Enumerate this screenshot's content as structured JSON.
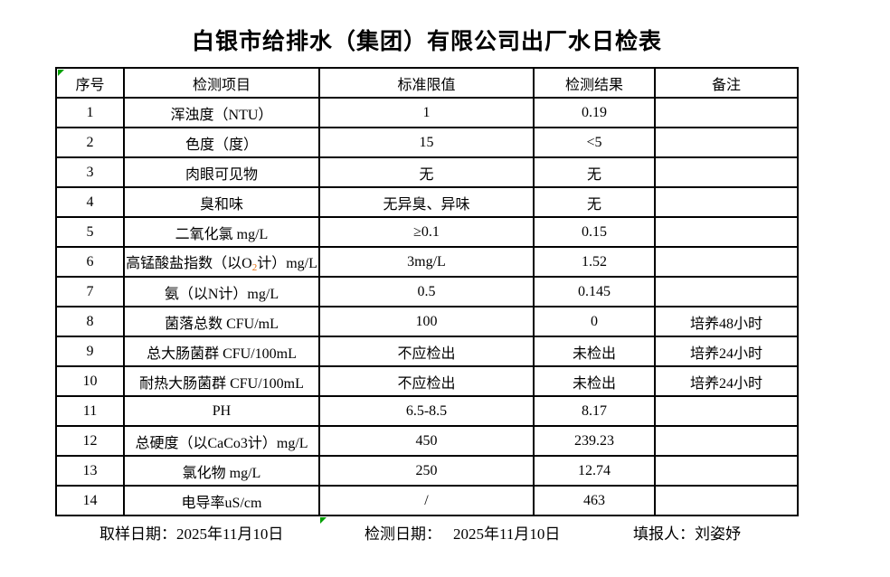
{
  "title": "白银市给排水（集团）有限公司出厂水日检表",
  "colors": {
    "error_indicator": "#00a000",
    "subscript_o2": "#e36c09"
  },
  "table": {
    "headers": {
      "no": "序号",
      "item": "检测项目",
      "standard": "标准限值",
      "result": "检测结果",
      "remark": "备注"
    },
    "rows": [
      {
        "no": "1",
        "item": "浑浊度（NTU）",
        "standard": "1",
        "result": "0.19",
        "remark": ""
      },
      {
        "no": "2",
        "item": "色度（度）",
        "standard": "15",
        "result": "<5",
        "remark": ""
      },
      {
        "no": "3",
        "item": "肉眼可见物",
        "standard": "无",
        "result": "无",
        "remark": ""
      },
      {
        "no": "4",
        "item": "臭和味",
        "standard": "无异臭、异味",
        "result": "无",
        "remark": ""
      },
      {
        "no": "5",
        "item": "二氧化氯 mg/L",
        "standard": "≥0.1",
        "result": "0.15",
        "remark": ""
      },
      {
        "no": "6",
        "item_parts": {
          "prefix": "高锰酸盐指数（以O",
          "sub": "2",
          "suffix": "计）mg/L"
        },
        "standard": "3mg/L",
        "result": "1.52",
        "remark": ""
      },
      {
        "no": "7",
        "item": "氨（以N计）mg/L",
        "standard": "0.5",
        "result": "0.145",
        "remark": ""
      },
      {
        "no": "8",
        "item": "菌落总数 CFU/mL",
        "standard": "100",
        "result": "0",
        "remark": "培养48小时"
      },
      {
        "no": "9",
        "item": "总大肠菌群 CFU/100mL",
        "standard": "不应检出",
        "result": "未检出",
        "remark": "培养24小时"
      },
      {
        "no": "10",
        "item": "耐热大肠菌群 CFU/100mL",
        "standard": "不应检出",
        "result": "未检出",
        "remark": "培养24小时"
      },
      {
        "no": "11",
        "item": "PH",
        "standard": "6.5-8.5",
        "result": "8.17",
        "remark": ""
      },
      {
        "no": "12",
        "item": "总硬度（以CaCo3计）mg/L",
        "standard": "450",
        "result": "239.23",
        "remark": ""
      },
      {
        "no": "13",
        "item": "氯化物 mg/L",
        "standard": "250",
        "result": "12.74",
        "remark": ""
      },
      {
        "no": "14",
        "item": "电导率uS/cm",
        "standard": "/",
        "result": "463",
        "remark": ""
      }
    ]
  },
  "footer": {
    "sampling_label": "取样日期：",
    "sampling_date": "2025年11月10日",
    "test_label": "检测日期：",
    "test_date": "2025年11月10日",
    "reporter_label": "填报人：",
    "reporter_name": "刘姿妤"
  }
}
